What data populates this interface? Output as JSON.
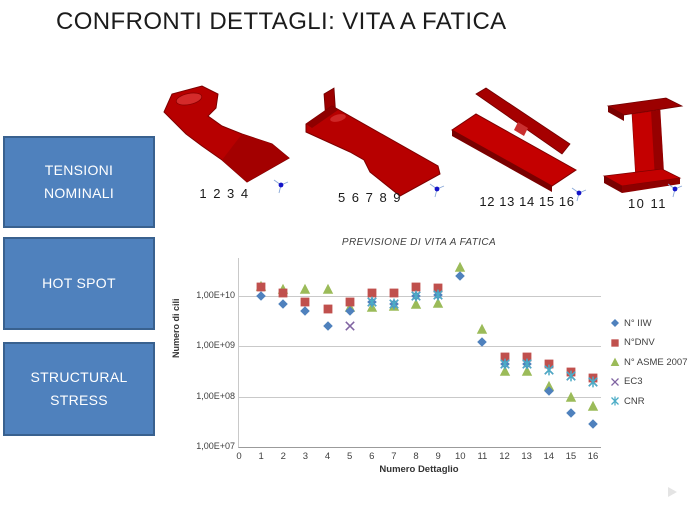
{
  "slide": {
    "title": "CONFRONTI DETTAGLI: VITA A FATICA"
  },
  "method_boxes": [
    {
      "label": "TENSIONI NOMINALI"
    },
    {
      "label": "HOT SPOT"
    },
    {
      "label": "STRUCTURAL STRESS"
    }
  ],
  "detail_figures": [
    {
      "caption": "1 2 3 4"
    },
    {
      "caption": "5 6 7 8 9"
    },
    {
      "caption": "12 13 14 15 16"
    },
    {
      "caption": "10 11"
    }
  ],
  "chart_data": {
    "type": "scatter",
    "title": "PREVISIONE DI VITA A FATICA",
    "xlabel": "Numero Dettaglio",
    "ylabel": "Numero di cili",
    "y_scale": "log",
    "grid": true,
    "legend_position": "right",
    "xlim": [
      0,
      16.4
    ],
    "ylim": [
      10000000.0,
      56000000000.0
    ],
    "x_ticks": [
      0,
      1,
      2,
      3,
      4,
      5,
      6,
      7,
      8,
      9,
      10,
      11,
      12,
      13,
      14,
      15,
      16
    ],
    "y_ticks": [
      {
        "label": "1,00E+10",
        "value": 10000000000.0
      },
      {
        "label": "1,00E+09",
        "value": 1000000000.0
      },
      {
        "label": "1,00E+08",
        "value": 100000000.0
      },
      {
        "label": "1,00E+07",
        "value": 10000000.0
      }
    ],
    "x": [
      1,
      2,
      3,
      4,
      5,
      6,
      7,
      8,
      9,
      10,
      11,
      12,
      13,
      14,
      15,
      16
    ],
    "series": [
      {
        "name": "N° IIW",
        "marker": "diamond",
        "color": "#4F81BD",
        "values": [
          10000000000.0,
          7000000000.0,
          5000000000.0,
          2500000000.0,
          5000000000.0,
          7500000000.0,
          7000000000.0,
          10000000000.0,
          10500000000.0,
          25000000000.0,
          1200000000.0,
          450000000.0,
          440000000.0,
          130000000.0,
          48000000.0,
          28000000.0
        ]
      },
      {
        "name": "N°DNV",
        "marker": "square",
        "color": "#C0504D",
        "values": [
          15000000000.0,
          11500000000.0,
          7500000000.0,
          5500000000.0,
          7500000000.0,
          11500000000.0,
          11500000000.0,
          15000000000.0,
          14500000000.0,
          null,
          null,
          620000000.0,
          610000000.0,
          440000000.0,
          310000000.0,
          240000000.0
        ]
      },
      {
        "name": "N° ASME 2007",
        "marker": "triangle",
        "color": "#9BBB59",
        "values": [
          16000000000.0,
          14000000000.0,
          13500000000.0,
          13500000000.0,
          6000000000.0,
          6000000000.0,
          6300000000.0,
          7000000000.0,
          7300000000.0,
          38000000000.0,
          2200000000.0,
          330000000.0,
          320000000.0,
          165000000.0,
          100000000.0,
          65000000.0
        ]
      },
      {
        "name": "EC3",
        "marker": "x",
        "color": "#8064A2",
        "values": [
          null,
          null,
          null,
          null,
          2500000000.0,
          7500000000.0,
          7000000000.0,
          10000000000.0,
          10500000000.0,
          null,
          null,
          450000000.0,
          440000000.0,
          340000000.0,
          260000000.0,
          200000000.0
        ]
      },
      {
        "name": "CNR",
        "marker": "asterisk",
        "color": "#4BACC6",
        "values": [
          null,
          null,
          null,
          null,
          null,
          7500000000.0,
          7000000000.0,
          10000000000.0,
          10500000000.0,
          null,
          null,
          450000000.0,
          440000000.0,
          340000000.0,
          260000000.0,
          200000000.0
        ]
      }
    ]
  }
}
